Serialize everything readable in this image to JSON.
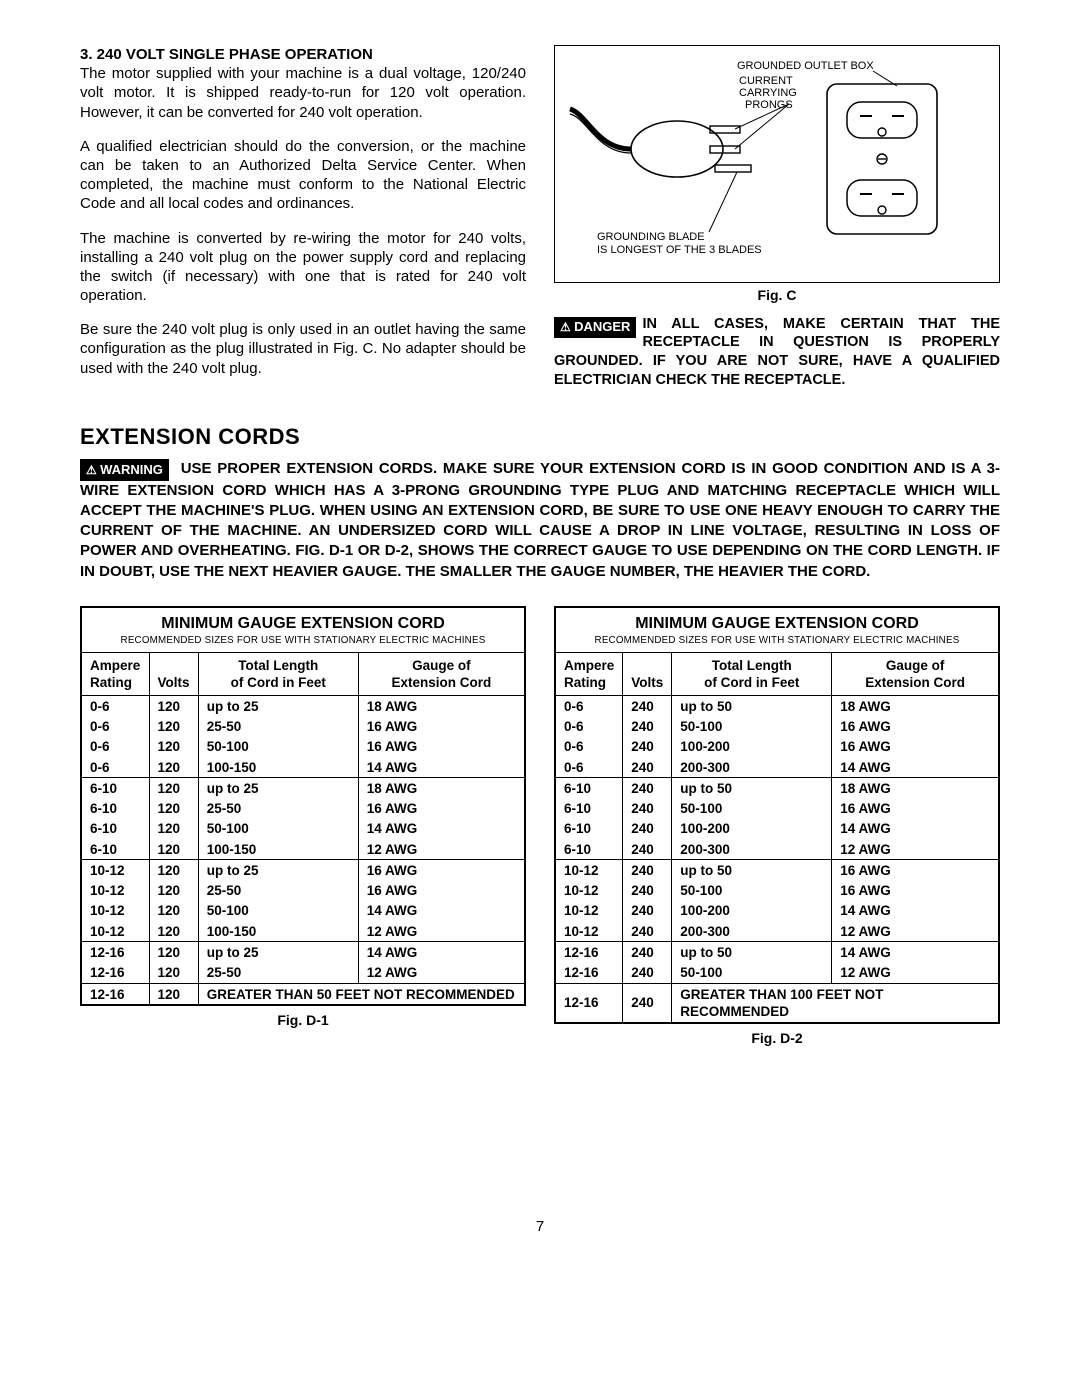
{
  "section3": {
    "title": "3. 240 VOLT SINGLE PHASE OPERATION",
    "p1": "The motor supplied with your machine is a dual voltage, 120/240 volt motor. It is shipped ready-to-run for 120 volt operation. However, it can be converted for 240 volt operation.",
    "p2": "A qualified electrician should do the conversion, or the machine can be taken to an Authorized Delta Service Center. When completed, the machine must conform to the National Electric Code and all local codes and ordinances.",
    "p3": "The machine is converted by re-wiring the motor for 240 volts, installing a 240 volt plug on the power supply cord and replacing the switch (if necessary) with one that is rated for 240 volt operation.",
    "p4": "Be sure the 240 volt plug is only used in an outlet having the same configuration as the plug illustrated in Fig. C. No adapter should be used with the 240 volt plug."
  },
  "figC": {
    "caption": "Fig. C",
    "label_outlet": "GROUNDED OUTLET BOX",
    "label_prongs1": "CURRENT",
    "label_prongs2": "CARRYING",
    "label_prongs3": "PRONGS",
    "label_blade1": "GROUNDING BLADE",
    "label_blade2": "IS LONGEST OF THE 3 BLADES"
  },
  "danger": {
    "badge": "DANGER",
    "text": "IN ALL CASES, MAKE CERTAIN THAT THE RECEPTACLE IN QUESTION IS PROPERLY GROUNDED. IF YOU ARE NOT SURE, HAVE A QUALIFIED ELECTRICIAN CHECK THE RECEPTACLE."
  },
  "ext": {
    "heading": "EXTENSION CORDS",
    "badge": "WARNING",
    "text": "USE PROPER EXTENSION CORDS. MAKE SURE YOUR EXTENSION CORD IS IN GOOD CONDITION AND IS A 3-WIRE EXTENSION CORD WHICH HAS A 3-PRONG GROUNDING TYPE PLUG AND MATCHING RECEPTACLE WHICH WILL ACCEPT THE MACHINE'S PLUG. WHEN USING AN EXTENSION CORD, BE SURE TO USE ONE HEAVY ENOUGH TO CARRY THE CURRENT OF THE MACHINE. AN UNDERSIZED CORD WILL CAUSE A DROP IN LINE VOLTAGE, RESULTING IN LOSS OF POWER AND OVERHEATING. FIG. D-1 OR D-2, SHOWS THE CORRECT GAUGE TO USE DEPENDING ON THE CORD LENGTH. IF IN DOUBT, USE THE NEXT HEAVIER GAUGE. THE SMALLER THE GAUGE NUMBER, THE HEAVIER THE CORD."
  },
  "table_common": {
    "title": "MINIMUM GAUGE EXTENSION CORD",
    "subtitle": "RECOMMENDED SIZES FOR USE WITH STATIONARY ELECTRIC MACHINES",
    "h1a": "Ampere",
    "h1b": "Rating",
    "h2": "Volts",
    "h3a": "Total Length",
    "h3b": "of Cord in Feet",
    "h4a": "Gauge of",
    "h4b": "Extension Cord"
  },
  "tableD1": {
    "caption": "Fig. D-1",
    "volts": "120",
    "note": "GREATER THAN 50 FEET NOT RECOMMENDED",
    "groups": [
      {
        "amp": "0-6",
        "rows": [
          [
            "up to 25",
            "18 AWG"
          ],
          [
            "25-50",
            "16 AWG"
          ],
          [
            "50-100",
            "16 AWG"
          ],
          [
            "100-150",
            "14 AWG"
          ]
        ]
      },
      {
        "amp": "6-10",
        "rows": [
          [
            "up to 25",
            "18 AWG"
          ],
          [
            "25-50",
            "16 AWG"
          ],
          [
            "50-100",
            "14 AWG"
          ],
          [
            "100-150",
            "12 AWG"
          ]
        ]
      },
      {
        "amp": "10-12",
        "rows": [
          [
            "up to 25",
            "16 AWG"
          ],
          [
            "25-50",
            "16 AWG"
          ],
          [
            "50-100",
            "14 AWG"
          ],
          [
            "100-150",
            "12 AWG"
          ]
        ]
      },
      {
        "amp": "12-16",
        "rows": [
          [
            "up to 25",
            "14 AWG"
          ],
          [
            "25-50",
            "12 AWG"
          ]
        ]
      }
    ]
  },
  "tableD2": {
    "caption": "Fig. D-2",
    "volts": "240",
    "note": "GREATER THAN 100 FEET NOT RECOMMENDED",
    "groups": [
      {
        "amp": "0-6",
        "rows": [
          [
            "up to 50",
            "18 AWG"
          ],
          [
            "50-100",
            "16 AWG"
          ],
          [
            "100-200",
            "16 AWG"
          ],
          [
            "200-300",
            "14 AWG"
          ]
        ]
      },
      {
        "amp": "6-10",
        "rows": [
          [
            "up to 50",
            "18 AWG"
          ],
          [
            "50-100",
            "16 AWG"
          ],
          [
            "100-200",
            "14 AWG"
          ],
          [
            "200-300",
            "12 AWG"
          ]
        ]
      },
      {
        "amp": "10-12",
        "rows": [
          [
            "up to 50",
            "16 AWG"
          ],
          [
            "50-100",
            "16 AWG"
          ],
          [
            "100-200",
            "14 AWG"
          ],
          [
            "200-300",
            "12 AWG"
          ]
        ]
      },
      {
        "amp": "12-16",
        "rows": [
          [
            "up to 50",
            "14 AWG"
          ],
          [
            "50-100",
            "12 AWG"
          ]
        ]
      }
    ]
  },
  "page": "7"
}
